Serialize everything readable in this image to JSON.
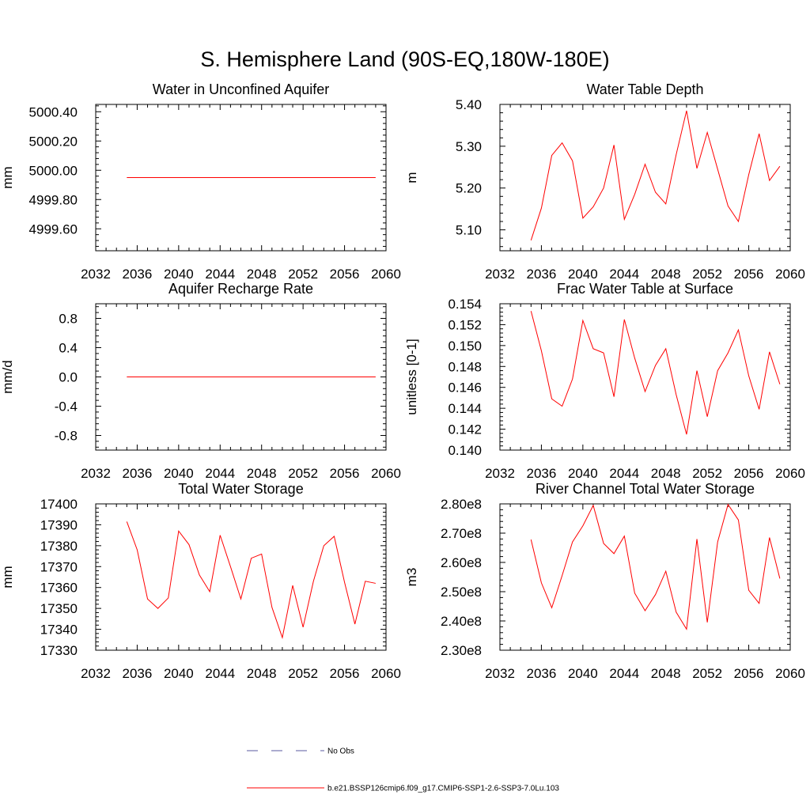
{
  "title": "S. Hemisphere Land (90S-EQ,180W-180E)",
  "chart_data": [
    {
      "type": "line",
      "title": "Water in Unconfined Aquifer",
      "ylabel": "mm",
      "xlim": [
        2032,
        2060
      ],
      "ylim": [
        4999.45,
        5000.45
      ],
      "xticks": [
        "2032",
        "2036",
        "2040",
        "2044",
        "2048",
        "2052",
        "2056",
        "2060"
      ],
      "yticks": [
        "4999.60",
        "4999.80",
        "5000.00",
        "5000.20",
        "5000.40"
      ],
      "series": [
        {
          "name": "b.e21.BSSP126cmip6.f09_g17.CMIP6-SSP1-2.6-SSP3-7.0Lu.103",
          "x": [
            2035,
            2036,
            2037,
            2038,
            2039,
            2040,
            2041,
            2042,
            2043,
            2044,
            2045,
            2046,
            2047,
            2048,
            2049,
            2050,
            2051,
            2052,
            2053,
            2054,
            2055,
            2056,
            2057,
            2058,
            2059
          ],
          "values": [
            4999.95,
            4999.95,
            4999.95,
            4999.95,
            4999.95,
            4999.95,
            4999.95,
            4999.95,
            4999.95,
            4999.95,
            4999.95,
            4999.95,
            4999.95,
            4999.95,
            4999.95,
            4999.95,
            4999.95,
            4999.95,
            4999.95,
            4999.95,
            4999.95,
            4999.95,
            4999.95,
            4999.95,
            4999.95
          ]
        }
      ]
    },
    {
      "type": "line",
      "title": "Water Table Depth",
      "ylabel": "m",
      "xlim": [
        2032,
        2060
      ],
      "ylim": [
        5.05,
        5.4
      ],
      "xticks": [
        "2032",
        "2036",
        "2040",
        "2044",
        "2048",
        "2052",
        "2056",
        "2060"
      ],
      "yticks": [
        "5.10",
        "5.20",
        "5.30",
        "5.40"
      ],
      "series": [
        {
          "name": "b.e21.BSSP126cmip6.f09_g17.CMIP6-SSP1-2.6-SSP3-7.0Lu.103",
          "x": [
            2035,
            2036,
            2037,
            2038,
            2039,
            2040,
            2041,
            2042,
            2043,
            2044,
            2045,
            2046,
            2047,
            2048,
            2049,
            2050,
            2051,
            2052,
            2053,
            2054,
            2055,
            2056,
            2057,
            2058,
            2059
          ],
          "values": [
            5.075,
            5.152,
            5.278,
            5.308,
            5.265,
            5.128,
            5.155,
            5.2,
            5.303,
            5.125,
            5.185,
            5.257,
            5.19,
            5.162,
            5.28,
            5.385,
            5.247,
            5.333,
            5.245,
            5.157,
            5.12,
            5.232,
            5.33,
            5.218,
            5.252
          ]
        }
      ]
    },
    {
      "type": "line",
      "title": "Aquifer Recharge Rate",
      "ylabel": "mm/d",
      "xlim": [
        2032,
        2060
      ],
      "ylim": [
        -1.0,
        1.0
      ],
      "xticks": [
        "2032",
        "2036",
        "2040",
        "2044",
        "2048",
        "2052",
        "2056",
        "2060"
      ],
      "yticks": [
        "-0.8",
        "-0.4",
        "0.0",
        "0.4",
        "0.8"
      ],
      "series": [
        {
          "name": "b.e21.BSSP126cmip6.f09_g17.CMIP6-SSP1-2.6-SSP3-7.0Lu.103",
          "x": [
            2035,
            2036,
            2037,
            2038,
            2039,
            2040,
            2041,
            2042,
            2043,
            2044,
            2045,
            2046,
            2047,
            2048,
            2049,
            2050,
            2051,
            2052,
            2053,
            2054,
            2055,
            2056,
            2057,
            2058,
            2059
          ],
          "values": [
            0,
            0,
            0,
            0,
            0,
            0,
            0,
            0,
            0,
            0,
            0,
            0,
            0,
            0,
            0,
            0,
            0,
            0,
            0,
            0,
            0,
            0,
            0,
            0,
            0
          ]
        }
      ]
    },
    {
      "type": "line",
      "title": "Frac Water Table at Surface",
      "ylabel": "unitless [0-1]",
      "xlim": [
        2032,
        2060
      ],
      "ylim": [
        0.14,
        0.154
      ],
      "xticks": [
        "2032",
        "2036",
        "2040",
        "2044",
        "2048",
        "2052",
        "2056",
        "2060"
      ],
      "yticks": [
        "0.140",
        "0.142",
        "0.144",
        "0.146",
        "0.148",
        "0.150",
        "0.152",
        "0.154"
      ],
      "series": [
        {
          "name": "b.e21.BSSP126cmip6.f09_g17.CMIP6-SSP1-2.6-SSP3-7.0Lu.103",
          "x": [
            2035,
            2036,
            2037,
            2038,
            2039,
            2040,
            2041,
            2042,
            2043,
            2044,
            2045,
            2046,
            2047,
            2048,
            2049,
            2050,
            2051,
            2052,
            2053,
            2054,
            2055,
            2056,
            2057,
            2058,
            2059
          ],
          "values": [
            0.1533,
            0.1495,
            0.1449,
            0.1442,
            0.1468,
            0.1524,
            0.1497,
            0.1493,
            0.1451,
            0.1525,
            0.1488,
            0.1456,
            0.1481,
            0.1497,
            0.1453,
            0.1415,
            0.1476,
            0.1432,
            0.1476,
            0.1493,
            0.1515,
            0.1471,
            0.1439,
            0.1494,
            0.1463
          ]
        }
      ]
    },
    {
      "type": "line",
      "title": "Total Water Storage",
      "ylabel": "mm",
      "xlim": [
        2032,
        2060
      ],
      "ylim": [
        17330,
        17400
      ],
      "xticks": [
        "2032",
        "2036",
        "2040",
        "2044",
        "2048",
        "2052",
        "2056",
        "2060"
      ],
      "yticks": [
        "17330",
        "17340",
        "17350",
        "17360",
        "17370",
        "17380",
        "17390",
        "17400"
      ],
      "series": [
        {
          "name": "b.e21.BSSP126cmip6.f09_g17.CMIP6-SSP1-2.6-SSP3-7.0Lu.103",
          "x": [
            2035,
            2036,
            2037,
            2038,
            2039,
            2040,
            2041,
            2042,
            2043,
            2044,
            2045,
            2046,
            2047,
            2048,
            2049,
            2050,
            2051,
            2052,
            2053,
            2054,
            2055,
            2056,
            2057,
            2058,
            2059
          ],
          "values": [
            17391.5,
            17378,
            17354.5,
            17350,
            17355,
            17387,
            17380.5,
            17366,
            17358,
            17385,
            17370,
            17354.5,
            17374,
            17376,
            17350.5,
            17336,
            17361,
            17341,
            17363,
            17380,
            17384.5,
            17362.5,
            17342.5,
            17363,
            17362
          ]
        }
      ]
    },
    {
      "type": "line",
      "title": "River Channel Total Water Storage",
      "ylabel": "m3",
      "xlim": [
        2032,
        2060
      ],
      "ylim": [
        230000000.0,
        280000000.0
      ],
      "xticks": [
        "2032",
        "2036",
        "2040",
        "2044",
        "2048",
        "2052",
        "2056",
        "2060"
      ],
      "yticks": [
        "2.30e8",
        "2.40e8",
        "2.50e8",
        "2.60e8",
        "2.70e8",
        "2.80e8"
      ],
      "series": [
        {
          "name": "b.e21.BSSP126cmip6.f09_g17.CMIP6-SSP1-2.6-SSP3-7.0Lu.103",
          "x": [
            2035,
            2036,
            2037,
            2038,
            2039,
            2040,
            2041,
            2042,
            2043,
            2044,
            2045,
            2046,
            2047,
            2048,
            2049,
            2050,
            2051,
            2052,
            2053,
            2054,
            2055,
            2056,
            2057,
            2058,
            2059
          ],
          "values": [
            267800000,
            253000000,
            244500000,
            255500000,
            267000000,
            272500000,
            279500000,
            266500000,
            263000000,
            269000000,
            249500000,
            243500000,
            249000000,
            257000000,
            243000000,
            237200000,
            268000000,
            239500000,
            267000000,
            279800000,
            274500000,
            250500000,
            246000000,
            268500000,
            254500000
          ]
        }
      ]
    }
  ],
  "legend": {
    "placement": "bottom",
    "entries": [
      {
        "label": "No Obs",
        "color": "#5a5aa0",
        "style": "dashed"
      },
      {
        "label": "b.e21.BSSP126cmip6.f09_g17.CMIP6-SSP1-2.6-SSP3-7.0Lu.103",
        "color": "#ff0000",
        "style": "solid"
      }
    ]
  },
  "colors": {
    "series": "#ff0000",
    "axes": "#000000"
  }
}
